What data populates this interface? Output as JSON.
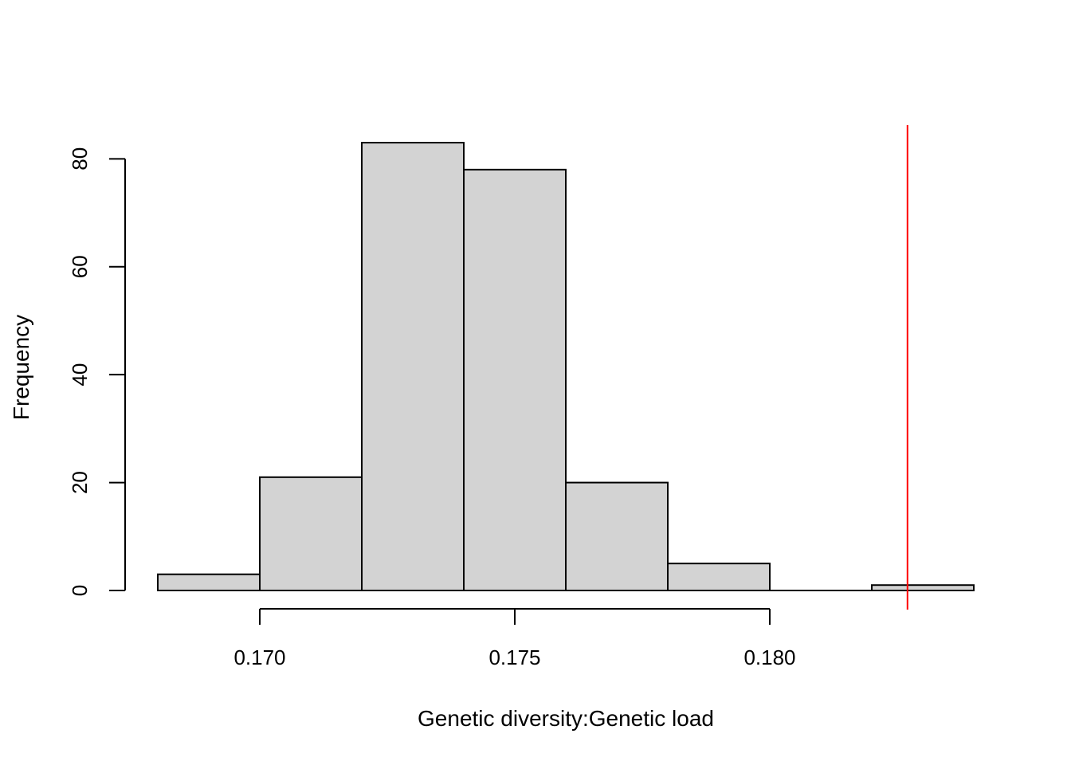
{
  "chart_data": {
    "type": "bar",
    "title": "",
    "xlabel": "Genetic diversity:Genetic load",
    "ylabel": "Frequency",
    "bins": [
      {
        "start": 0.168,
        "end": 0.17,
        "count": 3
      },
      {
        "start": 0.17,
        "end": 0.172,
        "count": 21
      },
      {
        "start": 0.172,
        "end": 0.174,
        "count": 83
      },
      {
        "start": 0.174,
        "end": 0.176,
        "count": 78
      },
      {
        "start": 0.176,
        "end": 0.178,
        "count": 20
      },
      {
        "start": 0.178,
        "end": 0.18,
        "count": 5
      },
      {
        "start": 0.18,
        "end": 0.182,
        "count": 0
      },
      {
        "start": 0.182,
        "end": 0.184,
        "count": 1
      }
    ],
    "x_ticks": [
      {
        "value": 0.17,
        "label": "0.170"
      },
      {
        "value": 0.175,
        "label": "0.175"
      },
      {
        "value": 0.18,
        "label": "0.180"
      }
    ],
    "y_ticks": [
      {
        "value": 0,
        "label": "0"
      },
      {
        "value": 20,
        "label": "20"
      },
      {
        "value": 40,
        "label": "40"
      },
      {
        "value": 60,
        "label": "60"
      },
      {
        "value": 80,
        "label": "80"
      }
    ],
    "xlim": [
      0.168,
      0.184
    ],
    "ylim": [
      0,
      83
    ],
    "reference_line": {
      "value": 0.1827,
      "color": "#ff0000"
    },
    "bar_fill": "#d3d3d3",
    "bar_stroke": "#000000",
    "grid": false
  }
}
